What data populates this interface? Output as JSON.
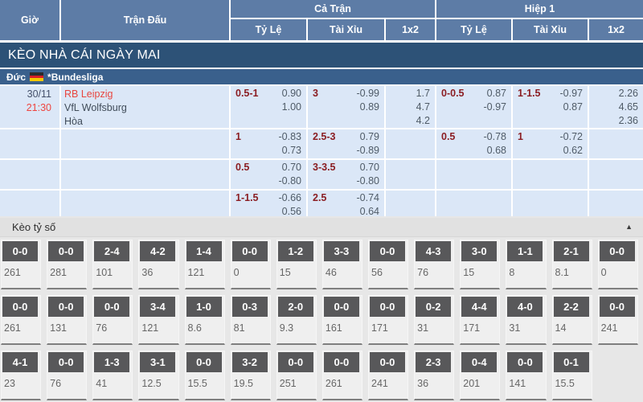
{
  "header": {
    "time": "Giờ",
    "match": "Trận Đấu",
    "full_time": "Cả Trận",
    "first_half": "Hiệp 1",
    "handicap": "Tỷ Lệ",
    "over_under": "Tài Xỉu",
    "one_x_two": "1x2"
  },
  "banner": {
    "title": "KÈO NHÀ CÁI NGÀY MAI"
  },
  "league": {
    "country": "Đức",
    "flag_icon": "germany-flag",
    "name": "*Bundesliga"
  },
  "match": {
    "date": "30/11",
    "time": "21:30",
    "home": "RB Leipzig",
    "away": "VfL Wolfsburg",
    "draw": "Hòa"
  },
  "odds_rows": [
    {
      "ft_hdp_line": "0.5-1",
      "ft_hdp_vals": [
        "0.90",
        "1.00"
      ],
      "ft_ou_line": "3",
      "ft_ou_vals": [
        "-0.99",
        "0.89"
      ],
      "ft_1x2": [
        "1.7",
        "4.7",
        "4.2"
      ],
      "h1_hdp_line": "0-0.5",
      "h1_hdp_vals": [
        "0.87",
        "-0.97"
      ],
      "h1_ou_line": "1-1.5",
      "h1_ou_vals": [
        "-0.97",
        "0.87"
      ],
      "h1_1x2": [
        "2.26",
        "4.65",
        "2.36"
      ]
    },
    {
      "ft_hdp_line": "1",
      "ft_hdp_vals": [
        "-0.83",
        "0.73"
      ],
      "ft_ou_line": "2.5-3",
      "ft_ou_vals": [
        "0.79",
        "-0.89"
      ],
      "ft_1x2": [],
      "h1_hdp_line": "0.5",
      "h1_hdp_vals": [
        "-0.78",
        "0.68"
      ],
      "h1_ou_line": "1",
      "h1_ou_vals": [
        "-0.72",
        "0.62"
      ],
      "h1_1x2": []
    },
    {
      "ft_hdp_line": "0.5",
      "ft_hdp_vals": [
        "0.70",
        "-0.80"
      ],
      "ft_ou_line": "3-3.5",
      "ft_ou_vals": [
        "0.70",
        "-0.80"
      ],
      "ft_1x2": [],
      "h1_hdp_line": "",
      "h1_hdp_vals": [],
      "h1_ou_line": "",
      "h1_ou_vals": [],
      "h1_1x2": []
    },
    {
      "ft_hdp_line": "1-1.5",
      "ft_hdp_vals": [
        "-0.66",
        "0.56"
      ],
      "ft_ou_line": "2.5",
      "ft_ou_vals": [
        "-0.74",
        "0.64"
      ],
      "ft_1x2": [],
      "h1_hdp_line": "",
      "h1_hdp_vals": [],
      "h1_ou_line": "",
      "h1_ou_vals": [],
      "h1_1x2": []
    }
  ],
  "score_section": {
    "title": "Kèo tỷ số",
    "collapse_icon": "triangle-up",
    "collapse_glyph": "▲",
    "rows": [
      [
        {
          "score": "0-0",
          "value": "261"
        },
        {
          "score": "0-0",
          "value": "281"
        },
        {
          "score": "2-4",
          "value": "101"
        },
        {
          "score": "4-2",
          "value": "36"
        },
        {
          "score": "1-4",
          "value": "121"
        },
        {
          "score": "0-0",
          "value": "0"
        },
        {
          "score": "1-2",
          "value": "15"
        },
        {
          "score": "3-3",
          "value": "46"
        },
        {
          "score": "0-0",
          "value": "56"
        },
        {
          "score": "4-3",
          "value": "76"
        },
        {
          "score": "3-0",
          "value": "15"
        },
        {
          "score": "1-1",
          "value": "8"
        },
        {
          "score": "2-1",
          "value": "8.1"
        },
        {
          "score": "0-0",
          "value": "0"
        }
      ],
      [
        {
          "score": "0-0",
          "value": "261"
        },
        {
          "score": "0-0",
          "value": "131"
        },
        {
          "score": "0-0",
          "value": "76"
        },
        {
          "score": "3-4",
          "value": "121"
        },
        {
          "score": "1-0",
          "value": "8.6"
        },
        {
          "score": "0-3",
          "value": "81"
        },
        {
          "score": "2-0",
          "value": "9.3"
        },
        {
          "score": "0-0",
          "value": "161"
        },
        {
          "score": "0-0",
          "value": "171"
        },
        {
          "score": "0-2",
          "value": "31"
        },
        {
          "score": "4-4",
          "value": "171"
        },
        {
          "score": "4-0",
          "value": "31"
        },
        {
          "score": "2-2",
          "value": "14"
        },
        {
          "score": "0-0",
          "value": "241"
        }
      ],
      [
        {
          "score": "4-1",
          "value": "23"
        },
        {
          "score": "0-0",
          "value": "76"
        },
        {
          "score": "1-3",
          "value": "41"
        },
        {
          "score": "3-1",
          "value": "12.5"
        },
        {
          "score": "0-0",
          "value": "15.5"
        },
        {
          "score": "3-2",
          "value": "19.5"
        },
        {
          "score": "0-0",
          "value": "251"
        },
        {
          "score": "0-0",
          "value": "261"
        },
        {
          "score": "0-0",
          "value": "241"
        },
        {
          "score": "2-3",
          "value": "36"
        },
        {
          "score": "0-4",
          "value": "201"
        },
        {
          "score": "0-0",
          "value": "141"
        },
        {
          "score": "0-1",
          "value": "15.5"
        },
        null
      ]
    ]
  },
  "colors": {
    "header_blue": "#5d7ca6",
    "banner_blue": "#2d5277",
    "league_blue": "#3a608c",
    "row_bg": "#dbe7f7",
    "accent_red": "#e8463f",
    "line_maroon": "#8b1e23",
    "badge_gray": "#58585a"
  }
}
